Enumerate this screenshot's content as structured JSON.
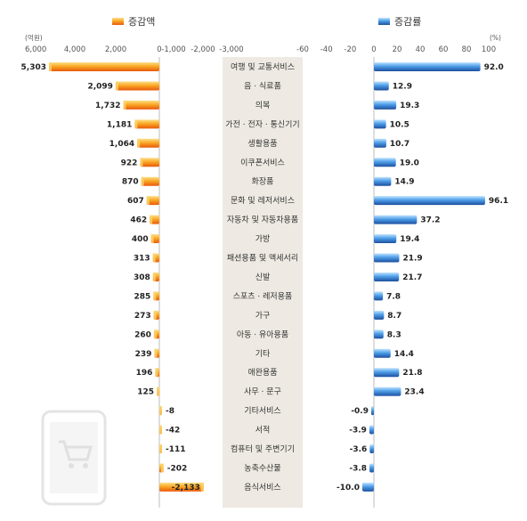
{
  "chart_data": {
    "type": "bar",
    "categories": [
      "여행 및 교통서비스",
      "음 · 식료품",
      "의복",
      "가전 · 전자 · 통신기기",
      "생활용품",
      "이쿠폰서비스",
      "화장품",
      "문화 및 레저서비스",
      "자동차 및 자동차용품",
      "가방",
      "패션용품 및 액세서리",
      "신발",
      "스포츠 · 레저용품",
      "가구",
      "아동 · 유아용품",
      "기타",
      "애완용품",
      "사무 · 문구",
      "기타서비스",
      "서적",
      "컴퓨터 및 주변기기",
      "농축수산물",
      "음식서비스"
    ],
    "series": [
      {
        "name": "증감액",
        "unit": "(억원)",
        "color": "#f7941d",
        "values": [
          5303,
          2099,
          1732,
          1181,
          1064,
          922,
          870,
          607,
          462,
          400,
          313,
          308,
          285,
          273,
          260,
          239,
          196,
          125,
          -8,
          -42,
          -111,
          -202,
          -2133
        ],
        "value_labels": [
          "5,303",
          "2,099",
          "1,732",
          "1,181",
          "1,064",
          "922",
          "870",
          "607",
          "462",
          "400",
          "313",
          "308",
          "285",
          "273",
          "260",
          "239",
          "196",
          "125",
          "-8",
          "-42",
          "-111",
          "-202",
          "-2,133"
        ],
        "ticks": [
          "6,000",
          "4,000",
          "2,000",
          "0",
          "-1,000",
          "-2,000",
          "-3,000"
        ]
      },
      {
        "name": "증감률",
        "unit": "(%)",
        "color": "#2b6cc4",
        "values": [
          92.0,
          12.9,
          19.3,
          10.5,
          10.7,
          19.0,
          14.9,
          96.1,
          37.2,
          19.4,
          21.9,
          21.7,
          7.8,
          8.7,
          8.3,
          14.4,
          21.8,
          23.4,
          -0.9,
          -3.9,
          -3.6,
          -3.8,
          -10.0
        ],
        "value_labels": [
          "92.0",
          "12.9",
          "19.3",
          "10.5",
          "10.7",
          "19.0",
          "14.9",
          "96.1",
          "37.2",
          "19.4",
          "21.9",
          "21.7",
          "7.8",
          "8.7",
          "8.3",
          "14.4",
          "21.8",
          "23.4",
          "-0.9",
          "-3.9",
          "-3.6",
          "-3.8",
          "-10.0"
        ],
        "ticks": [
          "-60",
          "-40",
          "-20",
          "0",
          "20",
          "40",
          "60",
          "80",
          "100"
        ]
      }
    ],
    "grid": false,
    "legend": "top"
  }
}
